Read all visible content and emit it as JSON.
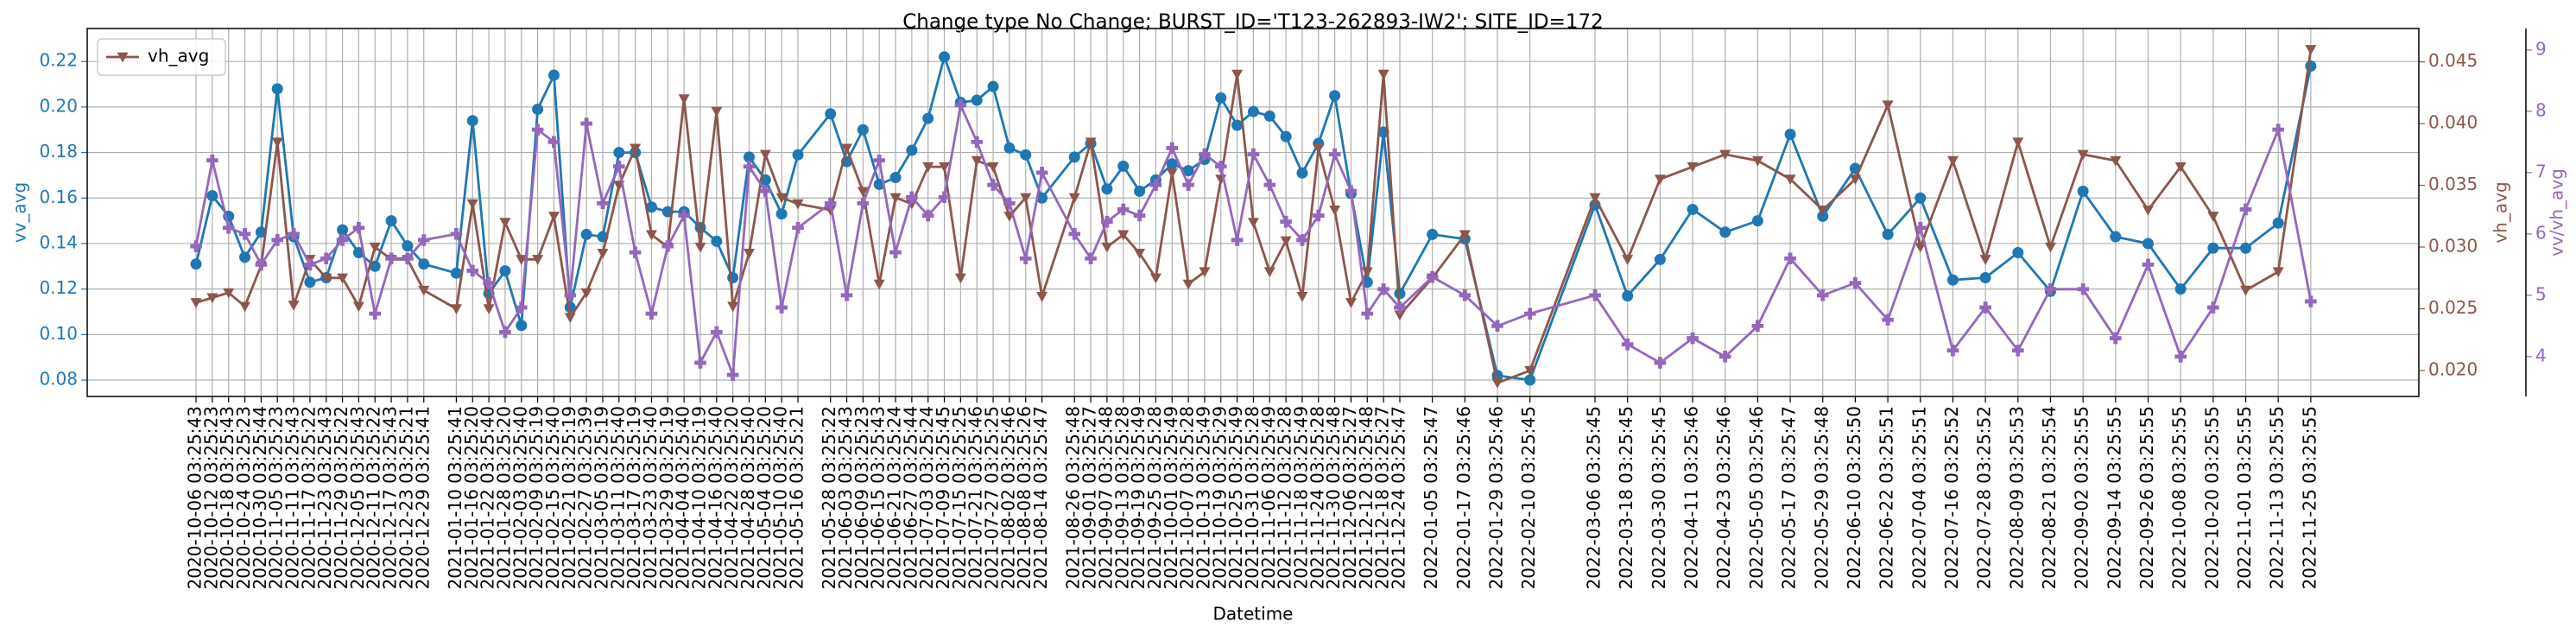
{
  "chart_data": {
    "type": "line",
    "title": "Change type No Change; BURST_ID='T123-262893-IW2'; SITE_ID=172",
    "x_label": "Datetime",
    "x": [
      "2020-10-06 03:25:43",
      "2020-10-12 03:25:23",
      "2020-10-18 03:25:43",
      "2020-10-24 03:25:23",
      "2020-10-30 03:25:44",
      "2020-11-05 03:25:23",
      "2020-11-11 03:25:43",
      "2020-11-17 03:25:22",
      "2020-11-23 03:25:43",
      "2020-11-29 03:25:22",
      "2020-12-05 03:25:43",
      "2020-12-11 03:25:22",
      "2020-12-17 03:25:43",
      "2020-12-23 03:25:21",
      "2020-12-29 03:25:41",
      "2021-01-10 03:25:41",
      "2021-01-16 03:25:20",
      "2021-01-22 03:25:40",
      "2021-01-28 03:25:20",
      "2021-02-03 03:25:40",
      "2021-02-09 03:25:19",
      "2021-02-15 03:25:40",
      "2021-02-21 03:25:19",
      "2021-02-27 03:25:39",
      "2021-03-05 03:25:19",
      "2021-03-11 03:25:40",
      "2021-03-17 03:25:19",
      "2021-03-23 03:25:40",
      "2021-03-29 03:25:19",
      "2021-04-04 03:25:40",
      "2021-04-10 03:25:19",
      "2021-04-16 03:25:40",
      "2021-04-22 03:25:20",
      "2021-04-28 03:25:40",
      "2021-05-04 03:25:20",
      "2021-05-10 03:25:40",
      "2021-05-16 03:25:21",
      "2021-05-28 03:25:22",
      "2021-06-03 03:25:43",
      "2021-06-09 03:25:23",
      "2021-06-15 03:25:43",
      "2021-06-21 03:25:24",
      "2021-06-27 03:25:44",
      "2021-07-03 03:25:24",
      "2021-07-09 03:25:45",
      "2021-07-15 03:25:25",
      "2021-07-21 03:25:46",
      "2021-07-27 03:25:25",
      "2021-08-02 03:25:46",
      "2021-08-08 03:25:26",
      "2021-08-14 03:25:47",
      "2021-08-26 03:25:48",
      "2021-09-01 03:25:27",
      "2021-09-07 03:25:48",
      "2021-09-13 03:25:28",
      "2021-09-19 03:25:49",
      "2021-09-25 03:25:28",
      "2021-10-01 03:25:49",
      "2021-10-07 03:25:28",
      "2021-10-13 03:25:49",
      "2021-10-19 03:25:29",
      "2021-10-25 03:25:49",
      "2021-10-31 03:25:28",
      "2021-11-06 03:25:49",
      "2021-11-12 03:25:28",
      "2021-11-18 03:25:49",
      "2021-11-24 03:25:28",
      "2021-11-30 03:25:48",
      "2021-12-06 03:25:27",
      "2021-12-12 03:25:48",
      "2021-12-18 03:25:27",
      "2021-12-24 03:25:47",
      "2022-01-05 03:25:47",
      "2022-01-17 03:25:46",
      "2022-01-29 03:25:46",
      "2022-02-10 03:25:45",
      "2022-03-06 03:25:45",
      "2022-03-18 03:25:45",
      "2022-03-30 03:25:45",
      "2022-04-11 03:25:46",
      "2022-04-23 03:25:46",
      "2022-05-05 03:25:46",
      "2022-05-17 03:25:47",
      "2022-05-29 03:25:48",
      "2022-06-10 03:25:50",
      "2022-06-22 03:25:51",
      "2022-07-04 03:25:51",
      "2022-07-16 03:25:52",
      "2022-07-28 03:25:52",
      "2022-08-09 03:25:53",
      "2022-08-21 03:25:54",
      "2022-09-02 03:25:55",
      "2022-09-14 03:25:55",
      "2022-09-26 03:25:55",
      "2022-10-08 03:25:55",
      "2022-10-20 03:25:55",
      "2022-11-01 03:25:55",
      "2022-11-13 03:25:55",
      "2022-11-25 03:25:55"
    ],
    "xlim": [
      "2020-08-27 00:00:00",
      "2023-01-04 00:00:00"
    ],
    "ylim": [
      0.0728,
      0.2345
    ],
    "yticks": [
      0.08,
      {
        "value": 0.1,
        "label": "0.10"
      },
      0.12,
      0.14,
      0.16,
      0.18,
      {
        "value": 0.2,
        "label": "0.20"
      },
      0.22
    ],
    "y2lim": [
      0.0179,
      0.0477
    ],
    "y2ticks": [
      {
        "value": 0.02,
        "label": "0.020"
      },
      0.025,
      {
        "value": 0.03,
        "label": "0.030"
      },
      0.035,
      {
        "value": 0.04,
        "label": "0.040"
      },
      0.045
    ],
    "y3lim": [
      3.35,
      9.35
    ],
    "y3ticks": [
      4,
      5,
      6,
      7,
      8,
      9
    ],
    "grid": true,
    "legend": "upper left",
    "series": [
      {
        "name": "vv_avg",
        "color": "#1f77b4",
        "marker": "circle",
        "values": [
          0.131,
          0.161,
          0.152,
          0.134,
          0.145,
          0.208,
          0.143,
          0.123,
          0.125,
          0.146,
          0.136,
          0.13,
          0.15,
          0.139,
          0.131,
          0.127,
          0.194,
          0.118,
          0.128,
          0.104,
          0.199,
          0.214,
          0.112,
          0.144,
          0.143,
          0.18,
          0.18,
          0.156,
          0.154,
          0.154,
          0.147,
          0.141,
          0.125,
          0.178,
          0.168,
          0.153,
          0.179,
          0.197,
          0.176,
          0.19,
          0.166,
          0.169,
          0.181,
          0.195,
          0.222,
          0.202,
          0.203,
          0.209,
          0.182,
          0.179,
          0.16,
          0.178,
          0.184,
          0.164,
          0.174,
          0.163,
          0.168,
          0.175,
          0.172,
          0.177,
          0.204,
          0.192,
          0.198,
          0.196,
          0.187,
          0.171,
          0.184,
          0.205,
          0.162,
          0.123,
          0.189,
          0.118,
          0.144,
          0.142,
          0.082,
          0.08,
          0.157,
          0.117,
          0.133,
          0.155,
          0.145,
          0.15,
          0.188,
          0.152,
          0.173,
          0.144,
          0.16,
          0.124,
          0.125,
          0.136,
          0.119,
          0.163,
          0.143,
          0.14,
          0.12,
          0.138,
          0.138,
          0.149,
          0.218
        ]
      },
      {
        "name": "vh_avg",
        "color": "#8c564b",
        "marker": "triangle-down",
        "axis": "y2",
        "legend": true,
        "values": [
          0.0255,
          0.0259,
          0.0263,
          0.0252,
          0.0285,
          0.0385,
          0.0253,
          0.029,
          0.0275,
          0.0275,
          0.0252,
          0.03,
          0.029,
          0.029,
          0.0265,
          0.025,
          0.0335,
          0.025,
          0.032,
          0.029,
          0.029,
          0.0325,
          0.0243,
          0.0263,
          0.0295,
          0.035,
          0.038,
          0.031,
          0.03,
          0.042,
          0.03,
          0.041,
          0.0252,
          0.0295,
          0.0375,
          0.034,
          0.0335,
          0.033,
          0.038,
          0.0345,
          0.027,
          0.034,
          0.0335,
          0.0365,
          0.0365,
          0.0275,
          0.037,
          0.0365,
          0.0325,
          0.034,
          0.026,
          0.034,
          0.0385,
          0.03,
          0.031,
          0.0295,
          0.0275,
          0.036,
          0.027,
          0.028,
          0.0355,
          0.044,
          0.032,
          0.028,
          0.0305,
          0.026,
          0.038,
          0.033,
          0.0255,
          0.028,
          0.044,
          0.0245,
          0.0275,
          0.031,
          0.019,
          0.02,
          0.034,
          0.029,
          0.0355,
          0.0365,
          0.0375,
          0.037,
          0.0355,
          0.033,
          0.0355,
          0.0415,
          0.03,
          0.037,
          0.029,
          0.0385,
          0.03,
          0.0375,
          0.037,
          0.033,
          0.0365,
          0.0325,
          0.0265,
          0.028,
          0.046
        ]
      },
      {
        "name": "vv/vh_avg",
        "color": "#9467bd",
        "marker": "plus",
        "axis": "y3",
        "values": [
          5.8,
          7.2,
          6.1,
          6.0,
          5.5,
          5.9,
          6.0,
          5.5,
          5.6,
          5.9,
          6.1,
          4.7,
          5.6,
          5.6,
          5.9,
          6.0,
          5.4,
          5.2,
          4.4,
          4.8,
          7.7,
          7.5,
          5.0,
          7.8,
          6.5,
          7.1,
          5.7,
          4.7,
          5.8,
          6.3,
          3.9,
          4.4,
          3.7,
          7.1,
          6.7,
          4.8,
          6.1,
          6.5,
          5.0,
          6.5,
          7.2,
          5.7,
          6.6,
          6.3,
          6.6,
          8.1,
          7.5,
          6.8,
          6.5,
          5.6,
          7.0,
          6.0,
          5.6,
          6.2,
          6.4,
          6.3,
          6.8,
          7.4,
          6.8,
          7.3,
          7.1,
          5.9,
          7.3,
          6.8,
          6.2,
          5.9,
          6.3,
          7.3,
          6.7,
          4.7,
          5.1,
          4.8,
          5.3,
          5.0,
          4.5,
          4.7,
          5.0,
          4.2,
          3.9,
          4.3,
          4.0,
          4.5,
          5.6,
          5.0,
          5.2,
          4.6,
          6.1,
          4.1,
          4.8,
          4.1,
          5.1,
          5.1,
          4.3,
          5.5,
          4.0,
          4.8,
          6.4,
          7.7,
          4.9
        ]
      }
    ]
  }
}
